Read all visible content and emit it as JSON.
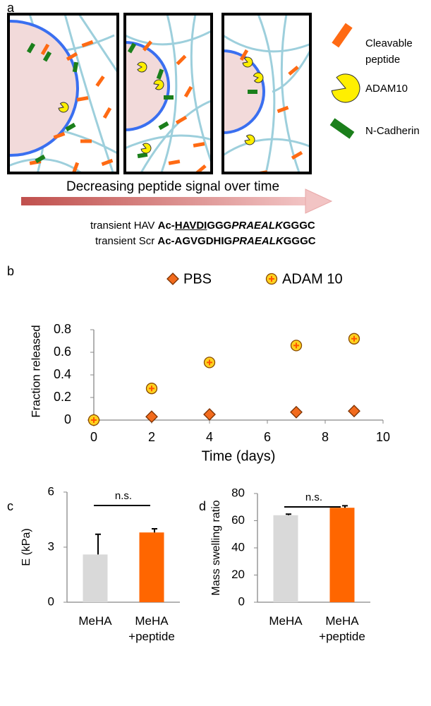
{
  "panel_labels": [
    "a",
    "b",
    "c",
    "d"
  ],
  "diagram": {
    "legend": [
      "Cleavable\npeptide",
      "ADAM10",
      "N-Cadherin"
    ],
    "arrow_label": "Decreasing peptide signal over time",
    "sequences": [
      {
        "label": "transient HAV",
        "parts": [
          "Ac-",
          "HAVDI",
          "GGG",
          "PRAEALK",
          "GGGC"
        ]
      },
      {
        "label": "transient Scr",
        "parts": [
          "Ac-AGVGDHIG",
          "PRAEALK",
          "GGGC"
        ]
      }
    ]
  },
  "chart_data": [
    {
      "type": "scatter",
      "x_label": "Time (days)",
      "y_label": "Fraction released",
      "x": [
        0,
        2,
        4,
        7,
        9
      ],
      "series": [
        {
          "name": "PBS",
          "color": "#f26b1d",
          "marker": "diamond",
          "values": [
            0,
            0.03,
            0.05,
            0.07,
            0.08
          ]
        },
        {
          "name": "ADAM 10",
          "color": "#ffd21f",
          "marker": "circle",
          "values": [
            0,
            0.28,
            0.51,
            0.66,
            0.72
          ]
        }
      ],
      "xlim": [
        0,
        10
      ],
      "xticks": [
        0,
        2,
        4,
        6,
        8,
        10
      ],
      "ylim": [
        0,
        0.8
      ],
      "yticks": [
        0,
        0.2,
        0.4,
        0.6,
        0.8
      ],
      "grid": false
    },
    {
      "type": "bar",
      "y_label": "E (kPa)",
      "annotation": "n.s.",
      "categories": [
        "MeHA",
        "MeHA\n+peptide"
      ],
      "values": [
        2.6,
        3.8
      ],
      "errors": [
        1.1,
        0.2
      ],
      "colors": [
        "#d9d9d9",
        "#ff6600"
      ],
      "ylim": [
        0,
        6
      ],
      "yticks": [
        0,
        3,
        6
      ],
      "grid": false
    },
    {
      "type": "bar",
      "y_label": "Mass swelling ratio",
      "annotation": "n.s.",
      "categories": [
        "MeHA",
        "MeHA\n+peptide"
      ],
      "values": [
        64,
        69.5
      ],
      "errors": [
        0.8,
        1.5
      ],
      "colors": [
        "#d9d9d9",
        "#ff6600"
      ],
      "ylim": [
        0,
        80
      ],
      "yticks": [
        0,
        20,
        40,
        60,
        80
      ],
      "grid": false
    }
  ]
}
